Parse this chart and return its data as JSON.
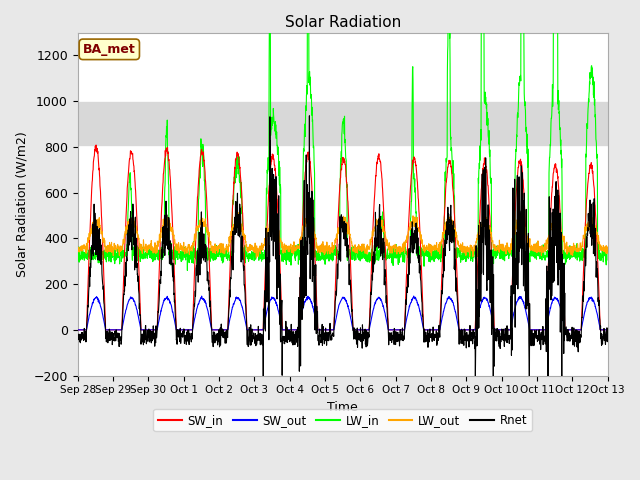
{
  "title": "Solar Radiation",
  "xlabel": "Time",
  "ylabel": "Solar Radiation (W/m2)",
  "ylim": [
    -200,
    1300
  ],
  "yticks": [
    -200,
    0,
    200,
    400,
    600,
    800,
    1000,
    1200
  ],
  "figsize": [
    6.4,
    4.8
  ],
  "dpi": 100,
  "background_color": "#e8e8e8",
  "plot_bg_color": "#ffffff",
  "grid_color": "#ffffff",
  "label_text": "BA_met",
  "label_box_color": "#ffffcc",
  "label_text_color": "#800000",
  "legend_entries": [
    "SW_in",
    "SW_out",
    "LW_in",
    "LW_out",
    "Rnet"
  ],
  "line_colors": [
    "red",
    "blue",
    "#00ff00",
    "orange",
    "black"
  ],
  "x_tick_labels": [
    "Sep 28",
    "Sep 29",
    "Sep 30",
    "Oct 1",
    "Oct 2",
    "Oct 3",
    "Oct 4",
    "Oct 5",
    "Oct 6",
    "Oct 7",
    "Oct 8",
    "Oct 9",
    "Oct 10",
    "Oct 11",
    "Oct 12",
    "Oct 13"
  ],
  "shaded_region": [
    800,
    1000
  ],
  "n_days": 15,
  "pts_per_day": 144
}
